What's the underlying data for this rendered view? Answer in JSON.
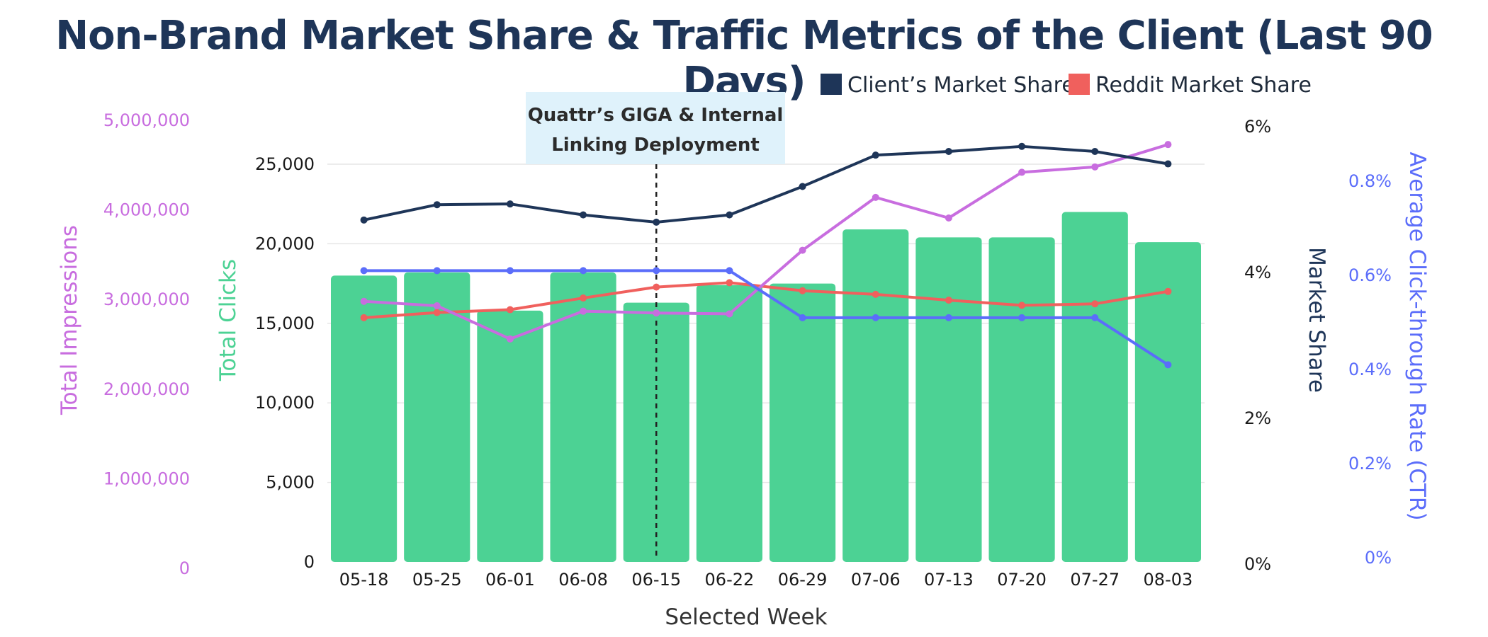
{
  "title": "Non-Brand Market Share & Traffic Metrics of the Client (Last 90 Days)",
  "chart_data": {
    "type": "bar",
    "categories": [
      "05-18",
      "05-25",
      "06-01",
      "06-08",
      "06-15",
      "06-22",
      "06-29",
      "07-06",
      "07-13",
      "07-20",
      "07-27",
      "08-03"
    ],
    "xlabel": "Selected Week",
    "axes": {
      "impressions": {
        "label": "Total Impressions",
        "ticks": [
          "0",
          "1,000,000",
          "2,000,000",
          "3,000,000",
          "4,000,000",
          "5,000,000"
        ],
        "range": [
          0,
          5000000
        ],
        "color": "#c86ddf"
      },
      "clicks": {
        "label": "Total Clicks",
        "ticks": [
          "0",
          "5,000",
          "10,000",
          "15,000",
          "20,000",
          "25,000"
        ],
        "range": [
          0,
          28000
        ],
        "color": "#4cd294"
      },
      "market_share": {
        "label": "Market Share",
        "ticks": [
          "0%",
          "2%",
          "4%",
          "6%"
        ],
        "range": [
          0,
          6
        ],
        "color": "#1e3558"
      },
      "ctr": {
        "label": "Average Click-through Rate (CTR)",
        "ticks": [
          "0%",
          "0.2%",
          "0.4%",
          "0.6%",
          "0.8%"
        ],
        "range": [
          0,
          0.9
        ],
        "color": "#5b6dfa"
      }
    },
    "series": [
      {
        "name": "Total Clicks",
        "kind": "bar",
        "axis": "clicks",
        "color": "#4cd294",
        "values": [
          18000,
          18200,
          15800,
          18200,
          16300,
          17400,
          17500,
          20900,
          20400,
          20400,
          22000,
          20100
        ]
      },
      {
        "name": "Client’s Market Share",
        "kind": "line",
        "axis": "market_share",
        "color": "#1e3558",
        "values": [
          4.72,
          4.93,
          4.94,
          4.79,
          4.69,
          4.79,
          5.18,
          5.61,
          5.66,
          5.73,
          5.66,
          5.49
        ]
      },
      {
        "name": "Reddit Market Share",
        "kind": "line",
        "axis": "market_share",
        "color": "#f0605d",
        "values": [
          3.38,
          3.45,
          3.49,
          3.65,
          3.8,
          3.86,
          3.75,
          3.7,
          3.62,
          3.55,
          3.57,
          3.74
        ]
      },
      {
        "name": "Total Impressions",
        "kind": "line",
        "axis": "impressions",
        "color": "#c86ddf",
        "values": [
          2980000,
          2930000,
          2560000,
          2870000,
          2850000,
          2840000,
          3550000,
          4140000,
          3910000,
          4420000,
          4480000,
          4730000
        ]
      },
      {
        "name": "Average Click-through Rate (CTR)",
        "kind": "line",
        "axis": "ctr",
        "color": "#5b6dfa",
        "values": [
          0.61,
          0.61,
          0.61,
          0.61,
          0.61,
          0.61,
          0.51,
          0.51,
          0.51,
          0.51,
          0.51,
          0.41
        ]
      }
    ],
    "legend": {
      "placement": "top-right",
      "items": [
        {
          "label": "Client’s Market Share",
          "color": "#1e3558"
        },
        {
          "label": "Reddit Market Share",
          "color": "#f0605d"
        }
      ]
    },
    "annotation": {
      "lines": [
        "Quattr’s GIGA & Internal",
        "Linking Deployment"
      ],
      "category": "06-15"
    },
    "grid": true
  }
}
